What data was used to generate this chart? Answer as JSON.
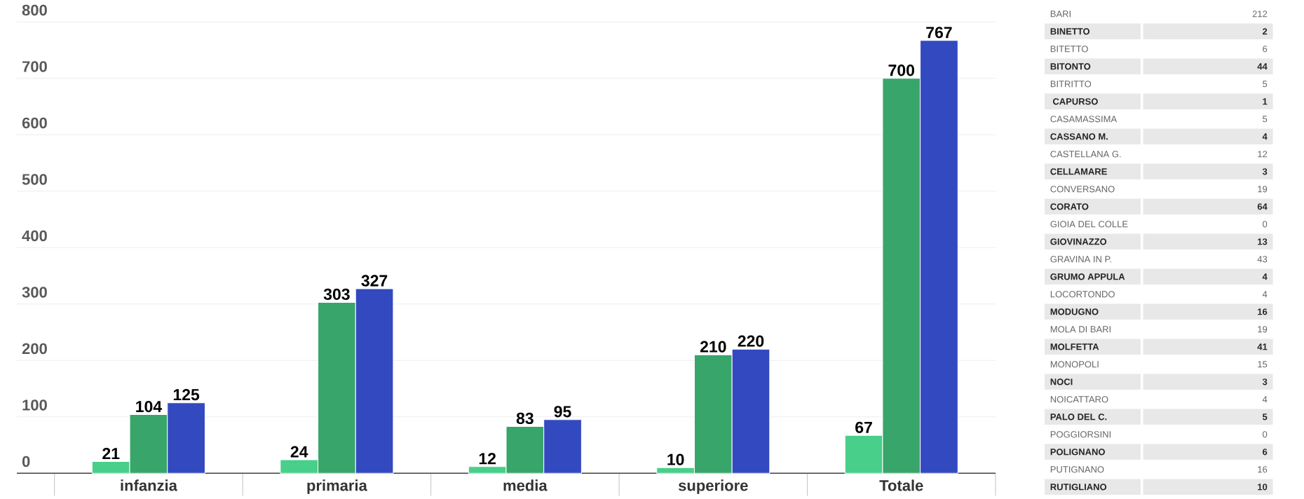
{
  "chart_data": [
    {
      "type": "bar",
      "categories": [
        "infanzia",
        "primaria",
        "media",
        "superiore",
        "Totale"
      ],
      "series": [
        {
          "color": "#48cf8a",
          "values": [
            21,
            24,
            12,
            10,
            67
          ]
        },
        {
          "color": "#38a56a",
          "values": [
            104,
            303,
            83,
            210,
            700
          ]
        },
        {
          "color": "#3249c0",
          "values": [
            125,
            327,
            95,
            220,
            767
          ]
        }
      ],
      "ylim": [
        0,
        800
      ],
      "yticks": [
        0,
        100,
        200,
        300,
        400,
        500,
        600,
        700,
        800
      ],
      "grid": "y",
      "data_labels": true
    },
    {
      "type": "other",
      "categories": [
        "BARI",
        "BINETTO",
        "BITETTO",
        "BITONTO",
        "BITRITTO",
        " CAPURSO",
        "CASAMASSIMA",
        "CASSANO M.",
        "CASTELLANA  G.",
        "CELLAMARE",
        "CONVERSANO",
        "CORATO",
        "GIOIA DEL COLLE",
        "GIOVINAZZO",
        "GRAVINA IN P.",
        "GRUMO APPULA",
        "LOCORTONDO",
        "MODUGNO",
        "MOLA DI BARI",
        "MOLFETTA",
        "MONOPOLI",
        "NOCI",
        "NOICATTARO",
        "PALO DEL C.",
        "POGGIORSINI",
        "POLIGNANO",
        "PUTIGNANO",
        "RUTIGLIANO"
      ],
      "values": [
        212,
        2,
        6,
        44,
        5,
        1,
        5,
        4,
        12,
        3,
        19,
        64,
        0,
        13,
        43,
        4,
        4,
        16,
        19,
        41,
        15,
        3,
        4,
        5,
        0,
        6,
        16,
        10
      ],
      "data_labels": true
    }
  ]
}
